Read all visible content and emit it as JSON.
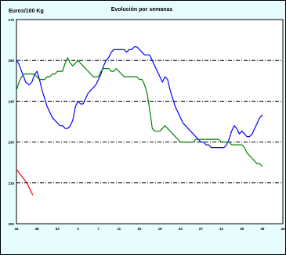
{
  "chart_data": {
    "type": "line",
    "title": "Evolución por semanas",
    "ylabel": "Euros/100 Kg",
    "xlabel": "",
    "ylim": [
      200,
      275
    ],
    "y_ticks": [
      200,
      215,
      230,
      245,
      260,
      275
    ],
    "x_ticks": [
      "44",
      "48",
      "52",
      "3",
      "7",
      "11",
      "15",
      "19",
      "23",
      "27",
      "31",
      "35",
      "39",
      "43"
    ],
    "x_tick_index": [
      0,
      4,
      8,
      12,
      16,
      20,
      24,
      28,
      32,
      36,
      40,
      44,
      48,
      52
    ],
    "reference_lines": [
      215,
      230,
      245,
      260
    ],
    "grid": false,
    "colors": {
      "blue": "#0000ff",
      "green": "#008000",
      "red": "#ff0000",
      "background": "#e6fcff",
      "plot": "#ffffff"
    },
    "series": [
      {
        "color": "blue",
        "points": [
          [
            0,
            260
          ],
          [
            0.4,
            259
          ],
          [
            1,
            256
          ],
          [
            1.8,
            252
          ],
          [
            2.5,
            251
          ],
          [
            3,
            252
          ],
          [
            3.6,
            255
          ],
          [
            4,
            256
          ],
          [
            4.5,
            253
          ],
          [
            5,
            249
          ],
          [
            5.5,
            246
          ],
          [
            6,
            243
          ],
          [
            6.5,
            241
          ],
          [
            7,
            239
          ],
          [
            7.5,
            238
          ],
          [
            8,
            237
          ],
          [
            8.5,
            236
          ],
          [
            9,
            236
          ],
          [
            9.5,
            235
          ],
          [
            10,
            235
          ],
          [
            10.5,
            236
          ],
          [
            11,
            238
          ],
          [
            11.5,
            243
          ],
          [
            12,
            245
          ],
          [
            12.5,
            244
          ],
          [
            13,
            244
          ],
          [
            13.5,
            246
          ],
          [
            14,
            248
          ],
          [
            14.5,
            249
          ],
          [
            15,
            250
          ],
          [
            15.5,
            251
          ],
          [
            16,
            253
          ],
          [
            16.5,
            255
          ],
          [
            17,
            258
          ],
          [
            17.5,
            260
          ],
          [
            18,
            261
          ],
          [
            18.5,
            263
          ],
          [
            19,
            264
          ],
          [
            19.5,
            264
          ],
          [
            20,
            264
          ],
          [
            20.5,
            264
          ],
          [
            21,
            264
          ],
          [
            21.5,
            263
          ],
          [
            22,
            264
          ],
          [
            22.5,
            264
          ],
          [
            23,
            265
          ],
          [
            23.5,
            265
          ],
          [
            24,
            264
          ],
          [
            24.5,
            263
          ],
          [
            25,
            262
          ],
          [
            25.5,
            262
          ],
          [
            26,
            262
          ],
          [
            26.5,
            260
          ],
          [
            27,
            258
          ],
          [
            27.5,
            256
          ],
          [
            28,
            254
          ],
          [
            28.5,
            252
          ],
          [
            29,
            254
          ],
          [
            29.5,
            253
          ],
          [
            30,
            249
          ],
          [
            30.5,
            246
          ],
          [
            31,
            243
          ],
          [
            31.5,
            241
          ],
          [
            32,
            239
          ],
          [
            32.5,
            237
          ],
          [
            33,
            236
          ],
          [
            33.5,
            235
          ],
          [
            34,
            234
          ],
          [
            34.5,
            233
          ],
          [
            35,
            232
          ],
          [
            35.5,
            231
          ],
          [
            36,
            230
          ],
          [
            36.5,
            230
          ],
          [
            37,
            229
          ],
          [
            37.5,
            229
          ],
          [
            38,
            228
          ],
          [
            38.5,
            228
          ],
          [
            39,
            228
          ],
          [
            39.5,
            228
          ],
          [
            40,
            228
          ],
          [
            40.5,
            228
          ],
          [
            41,
            229
          ],
          [
            41.5,
            231
          ],
          [
            42,
            234
          ],
          [
            42.5,
            236
          ],
          [
            43,
            235
          ],
          [
            43.5,
            233
          ],
          [
            44,
            234
          ],
          [
            44.5,
            233
          ],
          [
            45,
            232
          ],
          [
            45.5,
            232
          ],
          [
            46,
            233
          ],
          [
            46.5,
            235
          ],
          [
            47,
            237
          ],
          [
            47.5,
            239
          ],
          [
            48,
            240
          ]
        ]
      },
      {
        "color": "green",
        "points": [
          [
            0,
            249
          ],
          [
            0.5,
            252
          ],
          [
            1,
            254
          ],
          [
            1.5,
            255
          ],
          [
            2,
            255
          ],
          [
            2.5,
            255
          ],
          [
            3,
            255
          ],
          [
            3.5,
            255
          ],
          [
            4,
            254
          ],
          [
            4.5,
            253
          ],
          [
            5,
            253
          ],
          [
            5.5,
            253
          ],
          [
            6,
            254
          ],
          [
            6.5,
            254
          ],
          [
            7,
            255
          ],
          [
            7.5,
            255
          ],
          [
            8,
            256
          ],
          [
            8.5,
            256
          ],
          [
            9,
            256
          ],
          [
            9.5,
            259
          ],
          [
            10,
            261
          ],
          [
            10.5,
            259
          ],
          [
            11,
            258
          ],
          [
            11.5,
            259
          ],
          [
            12,
            260
          ],
          [
            12.5,
            259
          ],
          [
            13,
            258
          ],
          [
            13.5,
            257
          ],
          [
            14,
            256
          ],
          [
            14.5,
            255
          ],
          [
            15,
            254
          ],
          [
            15.5,
            254
          ],
          [
            16,
            254
          ],
          [
            16.5,
            256
          ],
          [
            17,
            257
          ],
          [
            17.5,
            257
          ],
          [
            18,
            257
          ],
          [
            18.5,
            256
          ],
          [
            19,
            256
          ],
          [
            19.5,
            257
          ],
          [
            20,
            256
          ],
          [
            20.5,
            255
          ],
          [
            21,
            254
          ],
          [
            21.5,
            254
          ],
          [
            22,
            254
          ],
          [
            22.5,
            254
          ],
          [
            23,
            254
          ],
          [
            23.5,
            254
          ],
          [
            24,
            253
          ],
          [
            24.5,
            253
          ],
          [
            25,
            251
          ],
          [
            25.5,
            248
          ],
          [
            26,
            242
          ],
          [
            26.5,
            235
          ],
          [
            27,
            234
          ],
          [
            27.5,
            234
          ],
          [
            28,
            234
          ],
          [
            28.5,
            235
          ],
          [
            29,
            236
          ],
          [
            29.5,
            235
          ],
          [
            30,
            234
          ],
          [
            30.5,
            233
          ],
          [
            31,
            232
          ],
          [
            31.5,
            231
          ],
          [
            32,
            230
          ],
          [
            32.5,
            230
          ],
          [
            33,
            230
          ],
          [
            33.5,
            230
          ],
          [
            34,
            230
          ],
          [
            34.5,
            230
          ],
          [
            35,
            231
          ],
          [
            35.5,
            231
          ],
          [
            36,
            231
          ],
          [
            36.5,
            231
          ],
          [
            37,
            231
          ],
          [
            37.5,
            231
          ],
          [
            38,
            231
          ],
          [
            38.5,
            231
          ],
          [
            39,
            231
          ],
          [
            39.5,
            231
          ],
          [
            40,
            230
          ],
          [
            40.5,
            230
          ],
          [
            41,
            230
          ],
          [
            41.5,
            230
          ],
          [
            42,
            229
          ],
          [
            42.5,
            229
          ],
          [
            43,
            229
          ],
          [
            43.5,
            229
          ],
          [
            44,
            229
          ],
          [
            44.5,
            228
          ],
          [
            45,
            226
          ],
          [
            45.5,
            225
          ],
          [
            46,
            224
          ],
          [
            46.5,
            223
          ],
          [
            47,
            222
          ],
          [
            47.5,
            222
          ],
          [
            48,
            221
          ]
        ]
      },
      {
        "color": "red",
        "points": [
          [
            0,
            220
          ],
          [
            1,
            217.5
          ],
          [
            2,
            215
          ],
          [
            2.8,
            212
          ],
          [
            3.2,
            210.5
          ]
        ]
      }
    ]
  }
}
